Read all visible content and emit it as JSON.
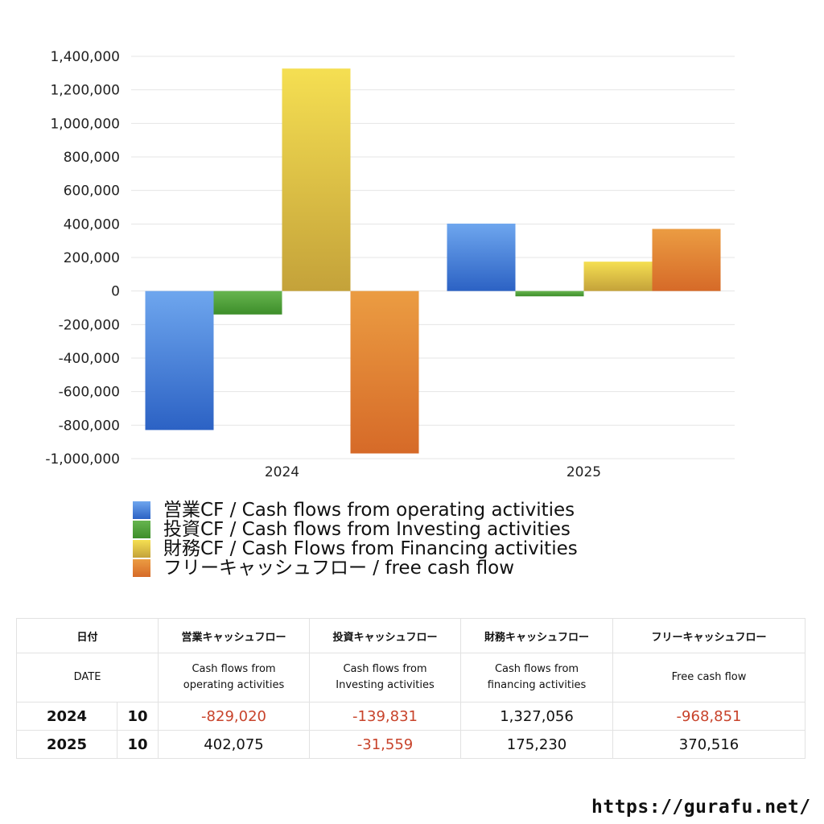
{
  "chart_data": {
    "type": "bar",
    "categories": [
      "2024",
      "2025"
    ],
    "series": [
      {
        "name": "営業CF / Cash flows from operating activities",
        "values": [
          -829020,
          402075
        ],
        "color": "#3a78d6"
      },
      {
        "name": "投資CF / Cash flows from Investing activities",
        "values": [
          -139831,
          -31559
        ],
        "color": "#4fa33b"
      },
      {
        "name": "財務CF / Cash Flows from Financing activities",
        "values": [
          1327056,
          175230
        ],
        "color": "#e6c53c"
      },
      {
        "name": "フリーキャッシュフロー / free cash flow",
        "values": [
          -968851,
          370516
        ],
        "color": "#e0782a"
      }
    ],
    "ylim": [
      -1000000,
      1400000
    ],
    "yticks": [
      -1000000,
      -800000,
      -600000,
      -400000,
      -200000,
      0,
      200000,
      400000,
      600000,
      800000,
      1000000,
      1200000,
      1400000
    ],
    "ytick_labels": [
      "-1,000,000",
      "-800,000",
      "-600,000",
      "-400,000",
      "-200,000",
      "0",
      "200,000",
      "400,000",
      "600,000",
      "800,000",
      "1,000,000",
      "1,200,000",
      "1,400,000"
    ],
    "grid": true,
    "legend_position": "bottom"
  },
  "table": {
    "header_jp": [
      "日付",
      "",
      "営業キャッシュフロー",
      "投資キャッシュフロー",
      "財務キャッシュフロー",
      "フリーキャッシュフロー"
    ],
    "header_en": [
      "DATE",
      "",
      "Cash flows from\noperating activities",
      "Cash flows from\nInvesting activities",
      "Cash flows from\nfinancing activities",
      "Free cash flow"
    ],
    "rows": [
      {
        "year": "2024",
        "month": "10",
        "values": [
          "-829,020",
          "-139,831",
          "1,327,056",
          "-968,851"
        ]
      },
      {
        "year": "2025",
        "month": "10",
        "values": [
          "402,075",
          "-31,559",
          "175,230",
          "370,516"
        ]
      }
    ]
  },
  "footer_url": "https://gurafu.net/"
}
